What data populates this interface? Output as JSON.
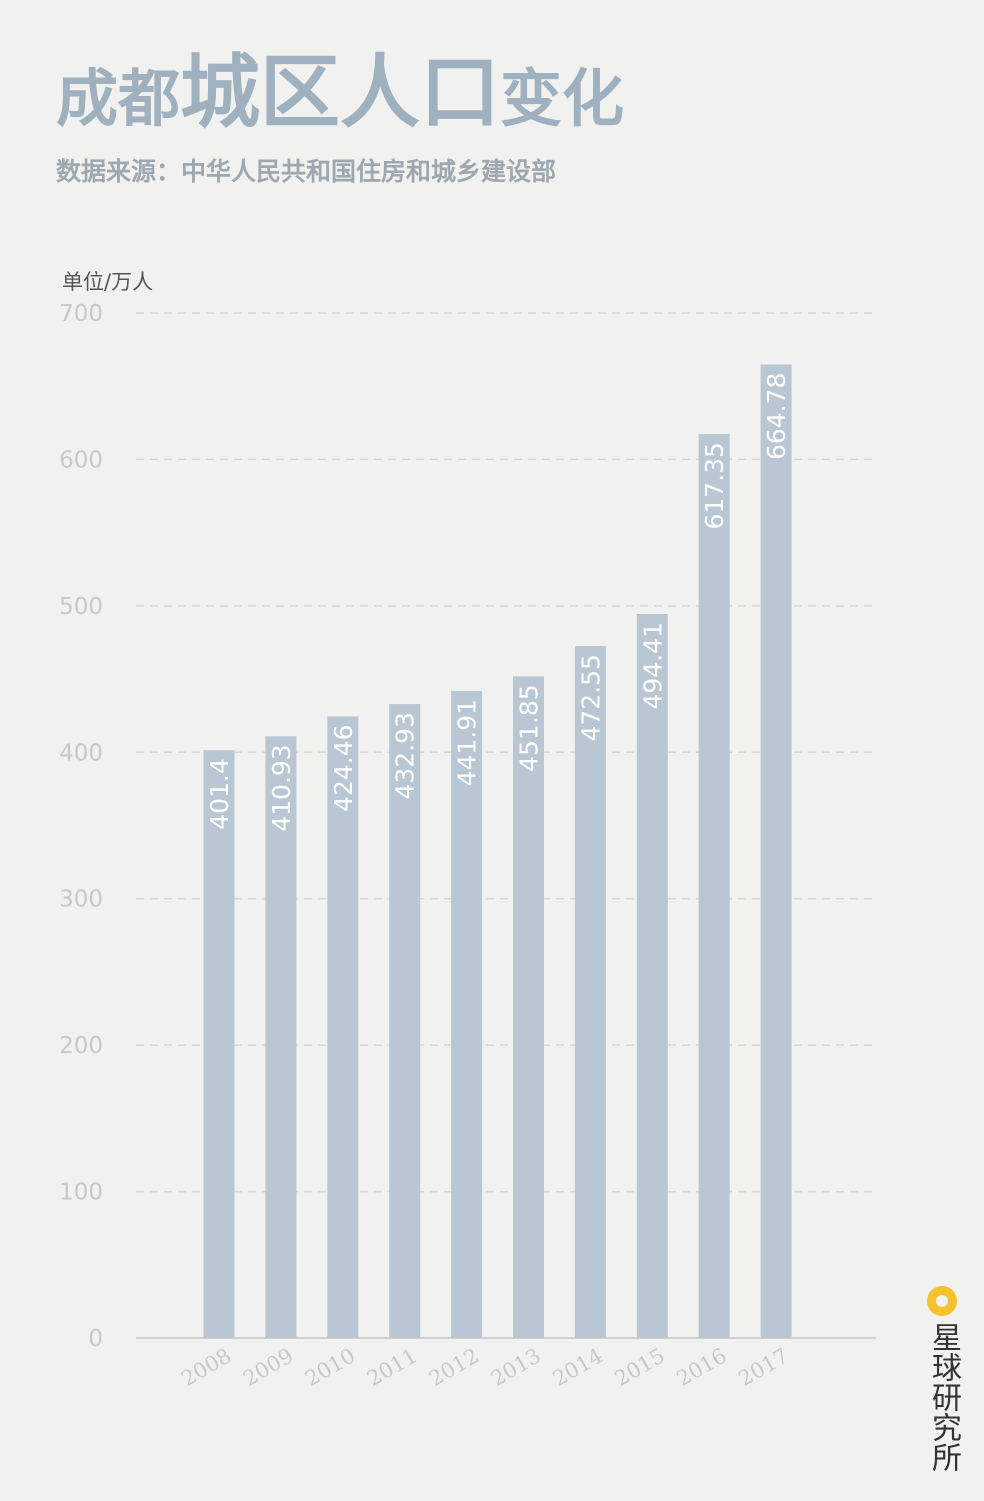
{
  "title": {
    "part1": "成都",
    "part2": "城区人口",
    "part3": "变化"
  },
  "subtitle": "数据来源：中华人民共和国住房和城乡建设部",
  "logo_text": "星球研究所",
  "colors": {
    "bar": "#b8c7d3",
    "label": "#ffffff",
    "axis": "#c4c4c4",
    "grid": "#d6d6d6",
    "tick": "#c8c8c8",
    "logo": "#f5c22c"
  },
  "chart_data": {
    "type": "bar",
    "ylabel": "单位/万人",
    "ylim": [
      0,
      700
    ],
    "yticks": [
      0,
      100,
      200,
      300,
      400,
      500,
      600,
      700
    ],
    "grid": true,
    "categories": [
      "2008",
      "2009",
      "2010",
      "2011",
      "2012",
      "2013",
      "2014",
      "2015",
      "2016",
      "2017"
    ],
    "values": [
      401.4,
      410.93,
      424.46,
      432.93,
      441.91,
      451.85,
      472.55,
      494.41,
      617.35,
      664.78
    ],
    "value_labels": [
      "401.4",
      "410.93",
      "424.46",
      "432.93",
      "441.91",
      "451.85",
      "472.55",
      "494.41",
      "617.35",
      "664.78"
    ]
  }
}
